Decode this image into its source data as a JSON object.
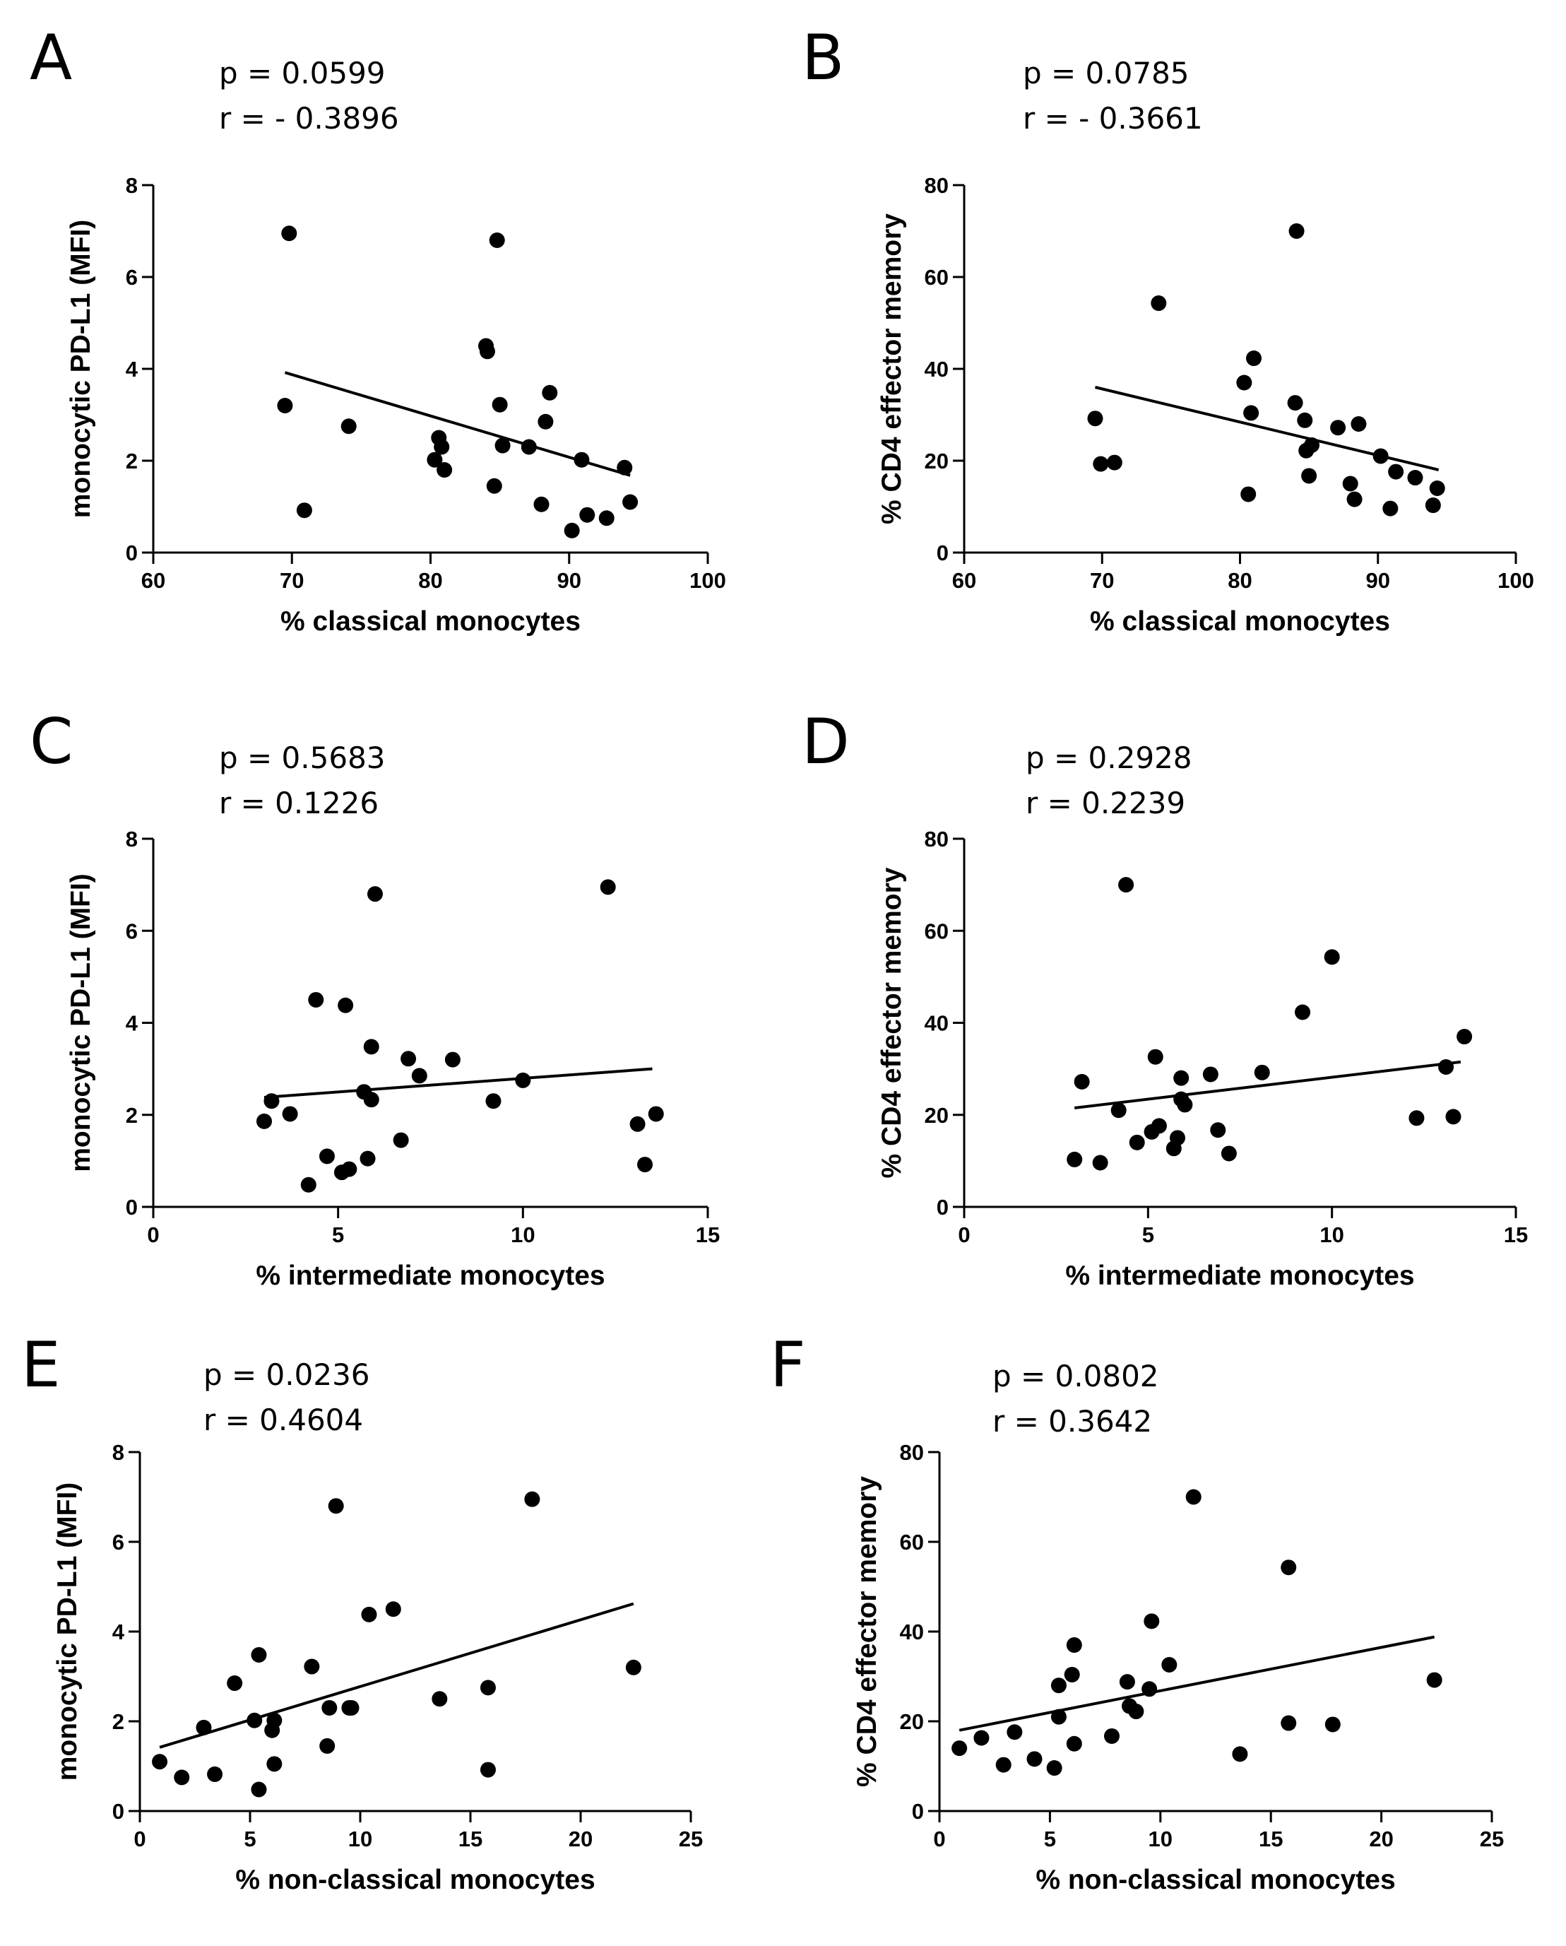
{
  "chart_data": [
    {
      "type": "scatter",
      "panel": "A",
      "stats": {
        "p": "p = 0.0599",
        "r": "r = - 0.3896"
      },
      "xlabel": "% classical monocytes",
      "ylabel": "monocytic PD-L1 (MFI)",
      "xlim": [
        60,
        100
      ],
      "ylim": [
        0,
        8
      ],
      "xticks": [
        60,
        70,
        80,
        90,
        100
      ],
      "yticks": [
        0,
        2,
        4,
        6,
        8
      ],
      "points": [
        [
          69.8,
          6.95
        ],
        [
          69.5,
          3.2
        ],
        [
          70.9,
          0.92
        ],
        [
          74.1,
          2.75
        ],
        [
          80.3,
          2.02
        ],
        [
          80.6,
          2.5
        ],
        [
          80.8,
          2.3
        ],
        [
          81.0,
          1.8
        ],
        [
          84.0,
          4.5
        ],
        [
          84.1,
          4.38
        ],
        [
          84.6,
          1.45
        ],
        [
          84.8,
          6.8
        ],
        [
          85.0,
          3.22
        ],
        [
          85.2,
          2.33
        ],
        [
          87.1,
          2.3
        ],
        [
          88.0,
          1.05
        ],
        [
          88.3,
          2.85
        ],
        [
          88.6,
          3.48
        ],
        [
          90.2,
          0.48
        ],
        [
          90.9,
          2.02
        ],
        [
          91.3,
          0.82
        ],
        [
          92.7,
          0.75
        ],
        [
          94.0,
          1.85
        ],
        [
          94.4,
          1.1
        ]
      ],
      "fit": {
        "x": [
          69.5,
          94.4
        ],
        "y": [
          3.92,
          1.68
        ]
      }
    },
    {
      "type": "scatter",
      "panel": "B",
      "stats": {
        "p": "p = 0.0785",
        "r": "r = - 0.3661"
      },
      "xlabel": "% classical monocytes",
      "ylabel": "% CD4 effector memory",
      "xlim": [
        60,
        100
      ],
      "ylim": [
        0,
        80
      ],
      "xticks": [
        60,
        70,
        80,
        90,
        100
      ],
      "yticks": [
        0,
        20,
        40,
        60,
        80
      ],
      "points": [
        [
          69.5,
          29.2
        ],
        [
          69.9,
          19.3
        ],
        [
          70.9,
          19.6
        ],
        [
          74.1,
          54.3
        ],
        [
          80.3,
          37.0
        ],
        [
          80.6,
          12.7
        ],
        [
          80.8,
          30.4
        ],
        [
          81.0,
          42.3
        ],
        [
          84.0,
          32.6
        ],
        [
          84.1,
          70.0
        ],
        [
          84.7,
          28.8
        ],
        [
          84.8,
          22.2
        ],
        [
          85.0,
          16.7
        ],
        [
          85.2,
          23.4
        ],
        [
          87.1,
          27.2
        ],
        [
          88.0,
          15.0
        ],
        [
          88.3,
          11.6
        ],
        [
          88.6,
          28.0
        ],
        [
          90.2,
          21.0
        ],
        [
          90.9,
          9.6
        ],
        [
          91.3,
          17.6
        ],
        [
          92.7,
          16.3
        ],
        [
          94.0,
          10.3
        ],
        [
          94.3,
          14.0
        ]
      ],
      "fit": {
        "x": [
          69.5,
          94.4
        ],
        "y": [
          36.0,
          18.0
        ]
      }
    },
    {
      "type": "scatter",
      "panel": "C",
      "stats": {
        "p": "p = 0.5683",
        "r": "r = 0.1226"
      },
      "xlabel": "% intermediate monocytes",
      "ylabel": "monocytic PD-L1 (MFI)",
      "xlim": [
        0,
        15
      ],
      "ylim": [
        0,
        8
      ],
      "xticks": [
        0,
        5,
        10,
        15
      ],
      "yticks": [
        0,
        2,
        4,
        6,
        8
      ],
      "points": [
        [
          3.0,
          1.86
        ],
        [
          3.2,
          2.3
        ],
        [
          3.7,
          2.02
        ],
        [
          4.2,
          0.48
        ],
        [
          4.4,
          4.5
        ],
        [
          4.7,
          1.1
        ],
        [
          5.1,
          0.75
        ],
        [
          5.2,
          4.38
        ],
        [
          5.3,
          0.82
        ],
        [
          5.7,
          2.5
        ],
        [
          5.8,
          1.05
        ],
        [
          5.9,
          3.48
        ],
        [
          5.9,
          2.33
        ],
        [
          6.0,
          6.8
        ],
        [
          6.7,
          1.45
        ],
        [
          6.9,
          3.22
        ],
        [
          7.2,
          2.85
        ],
        [
          8.1,
          3.2
        ],
        [
          9.2,
          2.3
        ],
        [
          10.0,
          2.75
        ],
        [
          12.3,
          6.95
        ],
        [
          13.1,
          1.8
        ],
        [
          13.3,
          0.92
        ],
        [
          13.6,
          2.02
        ]
      ],
      "fit": {
        "x": [
          3.0,
          13.5
        ],
        "y": [
          2.38,
          3.0
        ]
      }
    },
    {
      "type": "scatter",
      "panel": "D",
      "stats": {
        "p": "p = 0.2928",
        "r": "r = 0.2239"
      },
      "xlabel": "% intermediate monocytes",
      "ylabel": "% CD4 effector memory",
      "xlim": [
        0,
        15
      ],
      "ylim": [
        0,
        80
      ],
      "xticks": [
        0,
        5,
        10,
        15
      ],
      "yticks": [
        0,
        20,
        40,
        60,
        80
      ],
      "points": [
        [
          3.0,
          10.3
        ],
        [
          3.2,
          27.2
        ],
        [
          3.7,
          9.6
        ],
        [
          4.2,
          21.0
        ],
        [
          4.4,
          70.0
        ],
        [
          4.7,
          14.0
        ],
        [
          5.1,
          16.3
        ],
        [
          5.2,
          32.6
        ],
        [
          5.3,
          17.6
        ],
        [
          5.7,
          12.7
        ],
        [
          5.8,
          15.0
        ],
        [
          5.9,
          28.0
        ],
        [
          5.9,
          23.4
        ],
        [
          6.0,
          22.2
        ],
        [
          6.7,
          28.8
        ],
        [
          6.9,
          16.7
        ],
        [
          7.2,
          11.6
        ],
        [
          8.1,
          29.2
        ],
        [
          9.2,
          42.3
        ],
        [
          10.0,
          54.3
        ],
        [
          12.3,
          19.3
        ],
        [
          13.1,
          30.4
        ],
        [
          13.3,
          19.6
        ],
        [
          13.6,
          37.0
        ]
      ],
      "fit": {
        "x": [
          3.0,
          13.5
        ],
        "y": [
          21.5,
          31.5
        ]
      }
    },
    {
      "type": "scatter",
      "panel": "E",
      "stats": {
        "p": "p = 0.0236",
        "r": "r = 0.4604"
      },
      "xlabel": "% non-classical monocytes",
      "ylabel": "monocytic PD-L1 (MFI)",
      "xlim": [
        0,
        25
      ],
      "ylim": [
        0,
        8
      ],
      "xticks": [
        0,
        5,
        10,
        15,
        20,
        25
      ],
      "yticks": [
        0,
        2,
        4,
        6,
        8
      ],
      "points": [
        [
          0.9,
          1.1
        ],
        [
          1.9,
          0.75
        ],
        [
          2.9,
          1.86
        ],
        [
          3.4,
          0.82
        ],
        [
          4.3,
          2.85
        ],
        [
          5.2,
          2.02
        ],
        [
          5.4,
          3.48
        ],
        [
          5.4,
          0.48
        ],
        [
          6.0,
          1.8
        ],
        [
          6.1,
          2.02
        ],
        [
          6.1,
          1.05
        ],
        [
          7.8,
          3.22
        ],
        [
          8.5,
          1.45
        ],
        [
          8.6,
          2.3
        ],
        [
          8.9,
          6.8
        ],
        [
          9.5,
          2.3
        ],
        [
          9.6,
          2.3
        ],
        [
          10.4,
          4.38
        ],
        [
          11.5,
          4.5
        ],
        [
          13.6,
          2.5
        ],
        [
          15.8,
          2.75
        ],
        [
          15.8,
          0.92
        ],
        [
          17.8,
          6.95
        ],
        [
          22.4,
          3.2
        ]
      ],
      "fit": {
        "x": [
          0.9,
          22.4
        ],
        "y": [
          1.42,
          4.62
        ]
      }
    },
    {
      "type": "scatter",
      "panel": "F",
      "stats": {
        "p": "p = 0.0802",
        "r": "r = 0.3642"
      },
      "xlabel": "% non-classical monocytes",
      "ylabel": "% CD4 effector memory",
      "xlim": [
        0,
        25
      ],
      "ylim": [
        0,
        80
      ],
      "xticks": [
        0,
        5,
        10,
        15,
        20,
        25
      ],
      "yticks": [
        0,
        20,
        40,
        60,
        80
      ],
      "points": [
        [
          0.9,
          14.0
        ],
        [
          1.9,
          16.3
        ],
        [
          2.9,
          10.3
        ],
        [
          3.4,
          17.6
        ],
        [
          4.3,
          11.6
        ],
        [
          5.2,
          9.6
        ],
        [
          5.4,
          28.0
        ],
        [
          5.4,
          21.0
        ],
        [
          6.0,
          30.4
        ],
        [
          6.1,
          37.0
        ],
        [
          6.1,
          15.0
        ],
        [
          7.8,
          16.7
        ],
        [
          8.5,
          28.8
        ],
        [
          8.6,
          23.4
        ],
        [
          8.9,
          22.2
        ],
        [
          9.5,
          27.2
        ],
        [
          9.6,
          42.3
        ],
        [
          10.4,
          32.6
        ],
        [
          11.5,
          70.0
        ],
        [
          13.6,
          12.7
        ],
        [
          15.8,
          54.3
        ],
        [
          15.8,
          19.6
        ],
        [
          17.8,
          19.3
        ],
        [
          22.4,
          29.2
        ]
      ],
      "fit": {
        "x": [
          0.9,
          22.4
        ],
        "y": [
          18.0,
          38.8
        ]
      }
    }
  ]
}
